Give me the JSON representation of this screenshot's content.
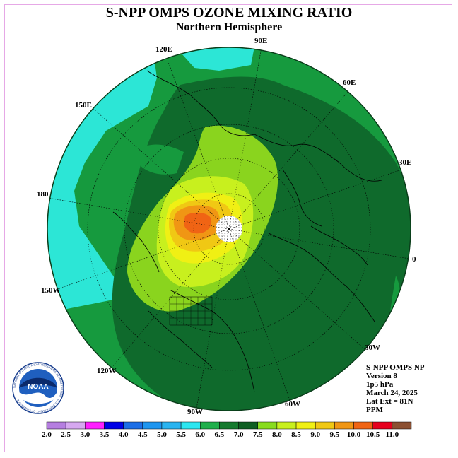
{
  "title": "S-NPP OMPS OZONE MIXING RATIO",
  "subtitle": "Northern Hemisphere",
  "logo_text": "NOAA",
  "logo_ring_text": "NATIONAL OCEANIC AND ATMOSPHERIC ADMINISTRATION · U.S. DEPARTMENT OF COMMERCE",
  "longitude_labels": [
    "90E",
    "60E",
    "30E",
    "0",
    "30W",
    "60W",
    "90W",
    "120W",
    "150W",
    "180",
    "150E",
    "120E"
  ],
  "info": {
    "product": "S-NPP OMPS NP",
    "version": "Version 8",
    "level": "1p5 hPa",
    "date": "March 24, 2025",
    "lat_ext": "Lat Ext = 81N",
    "units": "PPM"
  },
  "colorbar": {
    "labels": [
      "2.0",
      "2.5",
      "3.0",
      "3.5",
      "4.0",
      "4.5",
      "5.0",
      "5.5",
      "6.0",
      "6.5",
      "7.0",
      "7.5",
      "8.0",
      "8.5",
      "9.0",
      "9.5",
      "10.0",
      "10.5",
      "11.0"
    ],
    "colors": [
      "#b57ee0",
      "#d6a8f0",
      "#ff1fff",
      "#0000e6",
      "#1c6ee6",
      "#1e96f0",
      "#2ab4f0",
      "#2ce6f0",
      "#1faf4b",
      "#157a2e",
      "#0e5e22",
      "#88dc1e",
      "#c8f01e",
      "#f0f014",
      "#f0c814",
      "#f09614",
      "#f06414",
      "#e6001e",
      "#8c5032"
    ]
  },
  "map": {
    "colors": {
      "level_5_5_6_0": "#2ce6d6",
      "level_6_0_6_5": "#169a3e",
      "level_6_5_7_0": "#0f6a2c",
      "level_7_5_8_0": "#8ad41e",
      "level_8_0_8_5": "#c8f01e",
      "level_8_5_9_0": "#f0f014",
      "level_9_0_9_5": "#f0c814",
      "level_9_5_10_0": "#f09614",
      "level_10_0_10_5": "#f06414",
      "no_data": "#ffffff"
    },
    "data_gap": "white dotted circle over the pole (beyond 81N)"
  }
}
